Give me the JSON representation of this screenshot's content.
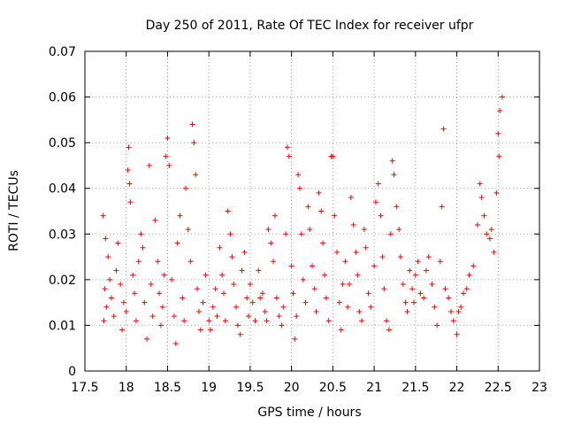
{
  "chart_data": {
    "type": "scatter",
    "title": "Day 250 of 2011, Rate Of TEC Index for receiver ufpr",
    "xlabel": "GPS time / hours",
    "ylabel": "ROTI / TECUs",
    "xlim": [
      17.5,
      23
    ],
    "ylim": [
      0,
      0.07
    ],
    "x_ticks": [
      "17.5",
      "18",
      "18.5",
      "19",
      "19.5",
      "20",
      "20.5",
      "21",
      "21.5",
      "22",
      "22.5",
      "23"
    ],
    "y_ticks": [
      "0",
      "0.01",
      "0.02",
      "0.03",
      "0.04",
      "0.05",
      "0.06",
      "0.07"
    ],
    "grid": true,
    "marker": "+",
    "color": "#ff0000",
    "series": [
      {
        "values": [
          [
            17.72,
            0.034
          ],
          [
            17.75,
            0.029
          ],
          [
            17.78,
            0.025
          ],
          [
            17.74,
            0.018
          ],
          [
            17.76,
            0.014
          ],
          [
            17.73,
            0.011
          ],
          [
            17.8,
            0.02
          ],
          [
            17.82,
            0.016
          ],
          [
            17.85,
            0.012
          ],
          [
            17.88,
            0.022
          ],
          [
            17.9,
            0.028
          ],
          [
            17.93,
            0.019
          ],
          [
            17.95,
            0.009
          ],
          [
            17.97,
            0.015
          ],
          [
            18.0,
            0.013
          ],
          [
            18.02,
            0.044
          ],
          [
            18.03,
            0.049
          ],
          [
            18.05,
            0.037
          ],
          [
            18.04,
            0.041
          ],
          [
            18.08,
            0.021
          ],
          [
            18.1,
            0.017
          ],
          [
            18.12,
            0.011
          ],
          [
            18.15,
            0.024
          ],
          [
            18.18,
            0.03
          ],
          [
            18.2,
            0.027
          ],
          [
            18.22,
            0.015
          ],
          [
            18.25,
            0.007
          ],
          [
            18.28,
            0.045
          ],
          [
            18.3,
            0.019
          ],
          [
            18.32,
            0.012
          ],
          [
            18.35,
            0.033
          ],
          [
            18.38,
            0.024
          ],
          [
            18.4,
            0.017
          ],
          [
            18.42,
            0.01
          ],
          [
            18.44,
            0.014
          ],
          [
            18.46,
            0.021
          ],
          [
            18.48,
            0.047
          ],
          [
            18.5,
            0.051
          ],
          [
            18.52,
            0.045
          ],
          [
            18.55,
            0.02
          ],
          [
            18.58,
            0.012
          ],
          [
            18.6,
            0.006
          ],
          [
            18.62,
            0.028
          ],
          [
            18.65,
            0.034
          ],
          [
            18.68,
            0.016
          ],
          [
            18.7,
            0.011
          ],
          [
            18.72,
            0.04
          ],
          [
            18.75,
            0.031
          ],
          [
            18.78,
            0.024
          ],
          [
            18.8,
            0.054
          ],
          [
            18.82,
            0.05
          ],
          [
            18.84,
            0.043
          ],
          [
            18.86,
            0.018
          ],
          [
            18.88,
            0.013
          ],
          [
            18.9,
            0.009
          ],
          [
            18.93,
            0.015
          ],
          [
            18.96,
            0.021
          ],
          [
            19.0,
            0.011
          ],
          [
            19.02,
            0.009
          ],
          [
            19.05,
            0.014
          ],
          [
            19.08,
            0.018
          ],
          [
            19.1,
            0.012
          ],
          [
            19.13,
            0.027
          ],
          [
            19.16,
            0.021
          ],
          [
            19.18,
            0.017
          ],
          [
            19.2,
            0.011
          ],
          [
            19.23,
            0.035
          ],
          [
            19.26,
            0.03
          ],
          [
            19.28,
            0.025
          ],
          [
            19.3,
            0.019
          ],
          [
            19.33,
            0.014
          ],
          [
            19.35,
            0.01
          ],
          [
            19.38,
            0.008
          ],
          [
            19.4,
            0.022
          ],
          [
            19.43,
            0.026
          ],
          [
            19.46,
            0.016
          ],
          [
            19.48,
            0.012
          ],
          [
            19.5,
            0.019
          ],
          [
            19.53,
            0.015
          ],
          [
            19.56,
            0.011
          ],
          [
            19.6,
            0.022
          ],
          [
            19.62,
            0.016
          ],
          [
            19.65,
            0.017
          ],
          [
            19.68,
            0.013
          ],
          [
            19.7,
            0.011
          ],
          [
            19.72,
            0.031
          ],
          [
            19.75,
            0.028
          ],
          [
            19.78,
            0.024
          ],
          [
            19.8,
            0.034
          ],
          [
            19.82,
            0.016
          ],
          [
            19.85,
            0.012
          ],
          [
            19.88,
            0.01
          ],
          [
            19.9,
            0.014
          ],
          [
            19.93,
            0.03
          ],
          [
            19.95,
            0.049
          ],
          [
            19.97,
            0.047
          ],
          [
            20.0,
            0.023
          ],
          [
            20.02,
            0.017
          ],
          [
            20.04,
            0.007
          ],
          [
            20.06,
            0.012
          ],
          [
            20.08,
            0.043
          ],
          [
            20.1,
            0.04
          ],
          [
            20.12,
            0.03
          ],
          [
            20.14,
            0.02
          ],
          [
            20.17,
            0.015
          ],
          [
            20.2,
            0.036
          ],
          [
            20.22,
            0.031
          ],
          [
            20.25,
            0.023
          ],
          [
            20.28,
            0.018
          ],
          [
            20.3,
            0.013
          ],
          [
            20.33,
            0.039
          ],
          [
            20.36,
            0.035
          ],
          [
            20.38,
            0.028
          ],
          [
            20.4,
            0.021
          ],
          [
            20.42,
            0.016
          ],
          [
            20.45,
            0.011
          ],
          [
            20.48,
            0.047
          ],
          [
            20.5,
            0.047
          ],
          [
            20.52,
            0.034
          ],
          [
            20.55,
            0.026
          ],
          [
            20.58,
            0.015
          ],
          [
            20.6,
            0.009
          ],
          [
            20.62,
            0.019
          ],
          [
            20.65,
            0.024
          ],
          [
            20.68,
            0.014
          ],
          [
            20.7,
            0.019
          ],
          [
            20.72,
            0.038
          ],
          [
            20.75,
            0.032
          ],
          [
            20.78,
            0.026
          ],
          [
            20.8,
            0.021
          ],
          [
            20.82,
            0.013
          ],
          [
            20.85,
            0.011
          ],
          [
            20.88,
            0.031
          ],
          [
            20.9,
            0.027
          ],
          [
            20.93,
            0.017
          ],
          [
            20.96,
            0.014
          ],
          [
            21.0,
            0.023
          ],
          [
            21.02,
            0.037
          ],
          [
            21.05,
            0.041
          ],
          [
            21.08,
            0.034
          ],
          [
            21.1,
            0.025
          ],
          [
            21.12,
            0.018
          ],
          [
            21.15,
            0.011
          ],
          [
            21.18,
            0.009
          ],
          [
            21.2,
            0.03
          ],
          [
            21.22,
            0.046
          ],
          [
            21.24,
            0.043
          ],
          [
            21.27,
            0.036
          ],
          [
            21.3,
            0.031
          ],
          [
            21.32,
            0.025
          ],
          [
            21.35,
            0.019
          ],
          [
            21.38,
            0.015
          ],
          [
            21.4,
            0.013
          ],
          [
            21.43,
            0.022
          ],
          [
            21.46,
            0.018
          ],
          [
            21.48,
            0.015
          ],
          [
            21.5,
            0.021
          ],
          [
            21.53,
            0.024
          ],
          [
            21.56,
            0.017
          ],
          [
            21.6,
            0.016
          ],
          [
            21.63,
            0.022
          ],
          [
            21.66,
            0.025
          ],
          [
            21.7,
            0.019
          ],
          [
            21.73,
            0.014
          ],
          [
            21.76,
            0.01
          ],
          [
            21.8,
            0.024
          ],
          [
            21.82,
            0.036
          ],
          [
            21.84,
            0.053
          ],
          [
            21.86,
            0.018
          ],
          [
            21.9,
            0.016
          ],
          [
            21.93,
            0.013
          ],
          [
            21.96,
            0.011
          ],
          [
            22.0,
            0.008
          ],
          [
            22.02,
            0.013
          ],
          [
            22.05,
            0.014
          ],
          [
            22.08,
            0.017
          ],
          [
            22.12,
            0.018
          ],
          [
            22.15,
            0.021
          ],
          [
            22.2,
            0.023
          ],
          [
            22.25,
            0.032
          ],
          [
            22.28,
            0.041
          ],
          [
            22.3,
            0.038
          ],
          [
            22.33,
            0.034
          ],
          [
            22.36,
            0.03
          ],
          [
            22.4,
            0.029
          ],
          [
            22.42,
            0.031
          ],
          [
            22.45,
            0.026
          ],
          [
            22.48,
            0.039
          ],
          [
            22.5,
            0.052
          ],
          [
            22.52,
            0.057
          ],
          [
            22.55,
            0.06
          ],
          [
            22.51,
            0.047
          ]
        ]
      }
    ]
  }
}
